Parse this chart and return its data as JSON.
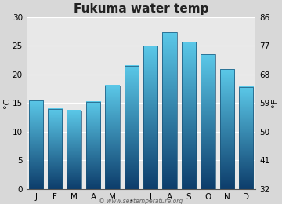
{
  "title": "Fukuma water temp",
  "months": [
    "J",
    "F",
    "M",
    "A",
    "M",
    "J",
    "J",
    "A",
    "S",
    "O",
    "N",
    "D"
  ],
  "values_c": [
    15.5,
    14.0,
    13.7,
    15.2,
    18.1,
    21.5,
    25.0,
    27.3,
    25.7,
    23.5,
    20.9,
    17.8
  ],
  "ylim_c": [
    0,
    30
  ],
  "yticks_c": [
    0,
    5,
    10,
    15,
    20,
    25,
    30
  ],
  "yticks_f": [
    32,
    41,
    50,
    59,
    68,
    77,
    86
  ],
  "ylabel_left": "°C",
  "ylabel_right": "°F",
  "bar_color_top": "#5bc8e8",
  "bar_color_bottom": "#0d3d6b",
  "bar_edge_color": "#1a5276",
  "background_color": "#d8d8d8",
  "plot_bg_color": "#e8e8e8",
  "grid_color": "#ffffff",
  "title_fontsize": 11,
  "axis_fontsize": 7.5,
  "watermark": "© www.seatemperature.org",
  "bar_width": 0.75
}
